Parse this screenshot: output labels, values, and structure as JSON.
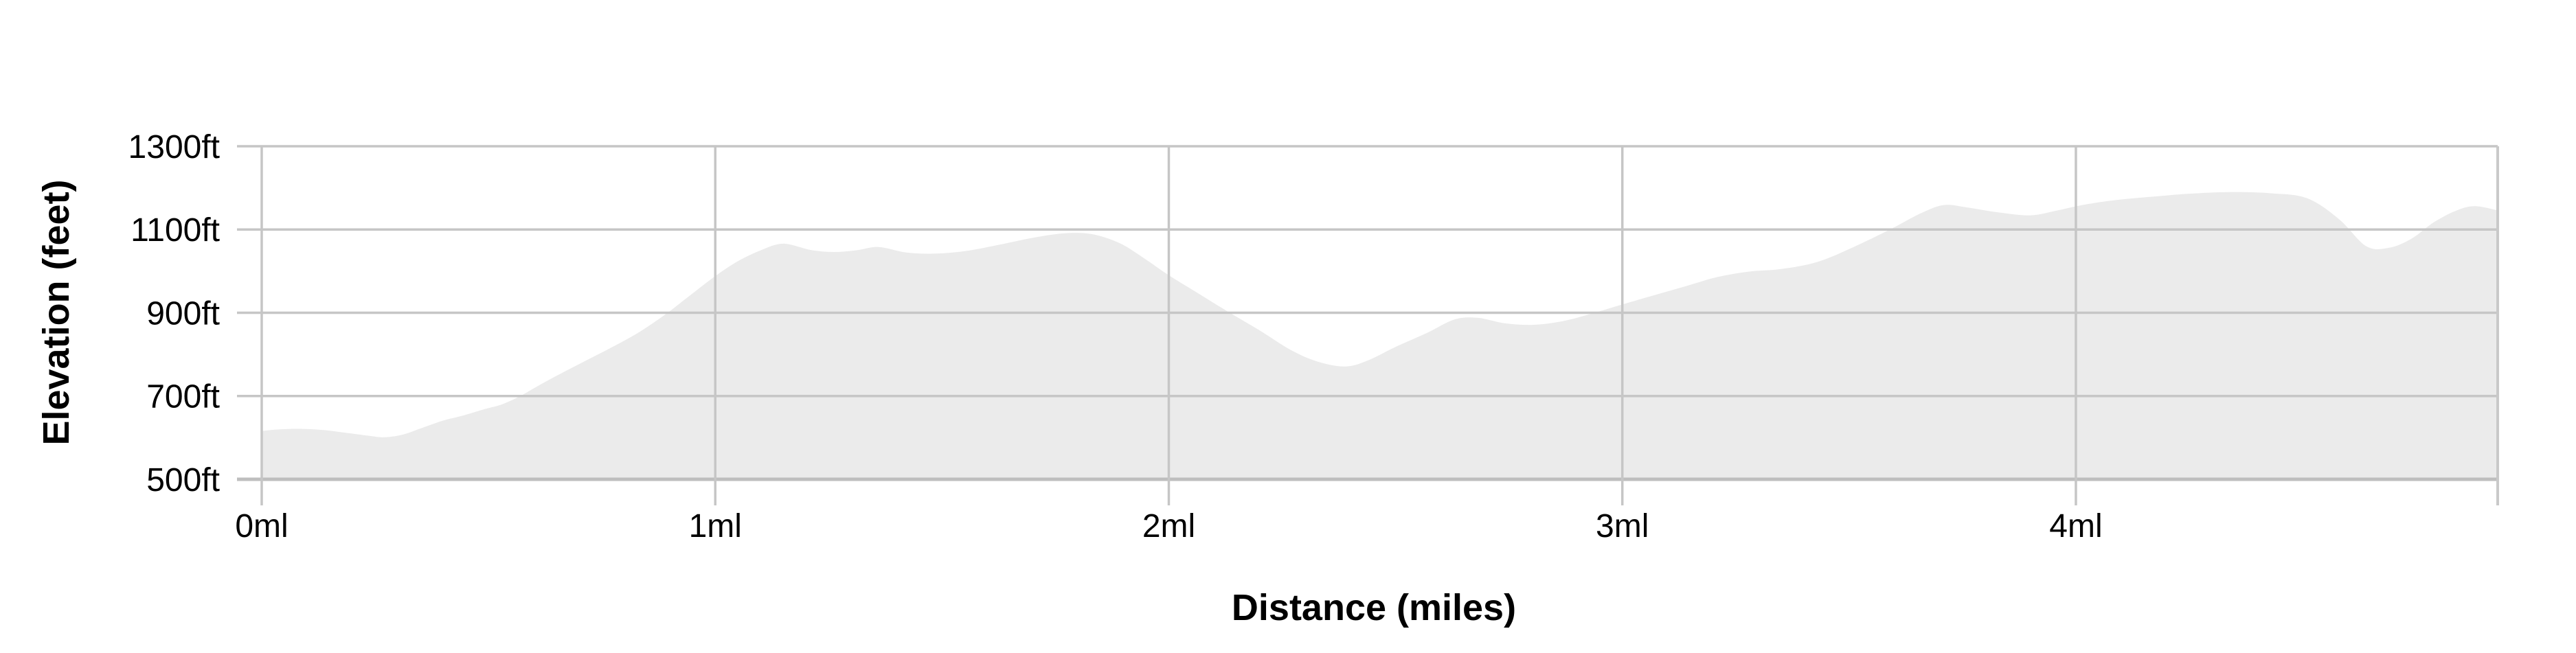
{
  "chart_data": {
    "type": "area",
    "title": "",
    "xlabel": "Distance (miles)",
    "ylabel": "Elevation (feet)",
    "xlim": [
      0,
      4.93
    ],
    "ylim": [
      500,
      1300
    ],
    "grid": true,
    "legend_position": "none",
    "x_ticks": [
      {
        "value": 0,
        "label": "0ml"
      },
      {
        "value": 1,
        "label": "1ml"
      },
      {
        "value": 2,
        "label": "2ml"
      },
      {
        "value": 3,
        "label": "3ml"
      },
      {
        "value": 4,
        "label": "4ml"
      }
    ],
    "y_ticks": [
      {
        "value": 500,
        "label": "500ft"
      },
      {
        "value": 700,
        "label": "700ft"
      },
      {
        "value": 900,
        "label": "900ft"
      },
      {
        "value": 1100,
        "label": "1100ft"
      },
      {
        "value": 1300,
        "label": "1300ft"
      }
    ],
    "series": [
      {
        "name": "elevation-profile",
        "points": [
          [
            0.0,
            616
          ],
          [
            0.04,
            620
          ],
          [
            0.09,
            621
          ],
          [
            0.14,
            618
          ],
          [
            0.19,
            611
          ],
          [
            0.24,
            604
          ],
          [
            0.27,
            601
          ],
          [
            0.31,
            607
          ],
          [
            0.35,
            622
          ],
          [
            0.4,
            641
          ],
          [
            0.44,
            652
          ],
          [
            0.49,
            668
          ],
          [
            0.53,
            680
          ],
          [
            0.57,
            700
          ],
          [
            0.62,
            731
          ],
          [
            0.67,
            760
          ],
          [
            0.72,
            788
          ],
          [
            0.77,
            816
          ],
          [
            0.83,
            852
          ],
          [
            0.89,
            896
          ],
          [
            0.94,
            938
          ],
          [
            1.0,
            988
          ],
          [
            1.05,
            1024
          ],
          [
            1.1,
            1050
          ],
          [
            1.15,
            1066
          ],
          [
            1.21,
            1051
          ],
          [
            1.26,
            1046
          ],
          [
            1.31,
            1050
          ],
          [
            1.36,
            1058
          ],
          [
            1.42,
            1045
          ],
          [
            1.48,
            1042
          ],
          [
            1.55,
            1048
          ],
          [
            1.62,
            1062
          ],
          [
            1.7,
            1080
          ],
          [
            1.77,
            1091
          ],
          [
            1.83,
            1089
          ],
          [
            1.89,
            1068
          ],
          [
            1.94,
            1035
          ],
          [
            2.0,
            990
          ],
          [
            2.06,
            950
          ],
          [
            2.13,
            903
          ],
          [
            2.2,
            858
          ],
          [
            2.27,
            810
          ],
          [
            2.33,
            782
          ],
          [
            2.39,
            771
          ],
          [
            2.44,
            786
          ],
          [
            2.5,
            818
          ],
          [
            2.57,
            852
          ],
          [
            2.63,
            884
          ],
          [
            2.68,
            888
          ],
          [
            2.74,
            875
          ],
          [
            2.8,
            871
          ],
          [
            2.86,
            878
          ],
          [
            2.92,
            894
          ],
          [
            3.0,
            920
          ],
          [
            3.07,
            942
          ],
          [
            3.14,
            964
          ],
          [
            3.21,
            986
          ],
          [
            3.28,
            999
          ],
          [
            3.35,
            1005
          ],
          [
            3.43,
            1022
          ],
          [
            3.51,
            1058
          ],
          [
            3.59,
            1100
          ],
          [
            3.66,
            1140
          ],
          [
            3.71,
            1159
          ],
          [
            3.76,
            1153
          ],
          [
            3.83,
            1141
          ],
          [
            3.9,
            1134
          ],
          [
            3.96,
            1146
          ],
          [
            4.02,
            1160
          ],
          [
            4.09,
            1171
          ],
          [
            4.17,
            1179
          ],
          [
            4.25,
            1186
          ],
          [
            4.34,
            1190
          ],
          [
            4.43,
            1187
          ],
          [
            4.51,
            1175
          ],
          [
            4.58,
            1125
          ],
          [
            4.64,
            1060
          ],
          [
            4.69,
            1056
          ],
          [
            4.74,
            1078
          ],
          [
            4.79,
            1118
          ],
          [
            4.84,
            1146
          ],
          [
            4.88,
            1156
          ],
          [
            4.93,
            1146
          ]
        ]
      }
    ],
    "colors": {
      "area_fill": "#ebebeb",
      "gridline": "#c6c6c6",
      "axis_line": "#bebebe",
      "right_border": "#c9c9c9",
      "text": "#000000",
      "background": "#ffffff"
    }
  }
}
